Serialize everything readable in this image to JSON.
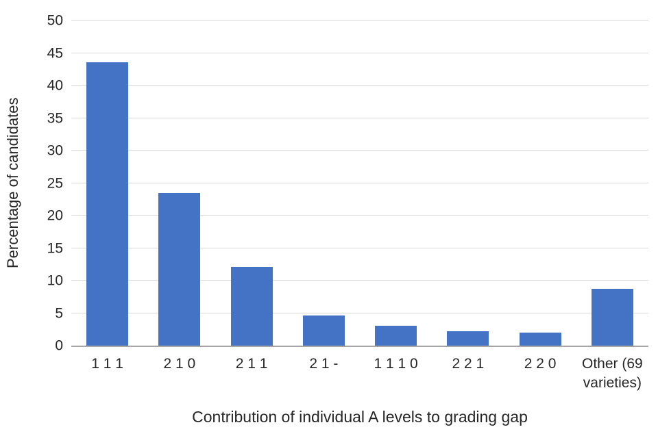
{
  "chart_data": {
    "type": "bar",
    "title": "",
    "categories": [
      "1 1 1",
      "2 1 0",
      "2 1 1",
      "2 1 -",
      "1 1 1 0",
      "2 2 1",
      "2 2 0",
      "Other (69 varieties)"
    ],
    "values": [
      43.6,
      23.5,
      12.1,
      4.6,
      3.1,
      2.2,
      2.0,
      8.7
    ],
    "xlabel": "Contribution of individual A levels to grading gap",
    "ylabel": "Percentage of candidates",
    "ylim": [
      0,
      50
    ],
    "yticks": [
      0,
      5,
      10,
      15,
      20,
      25,
      30,
      35,
      40,
      45,
      50
    ],
    "grid": true,
    "legend": "none",
    "bar_color": "#4472C4",
    "gridline_color": "#D9D9D9",
    "axis_line_color": "#A6A6A6",
    "text_color": "#262626"
  }
}
